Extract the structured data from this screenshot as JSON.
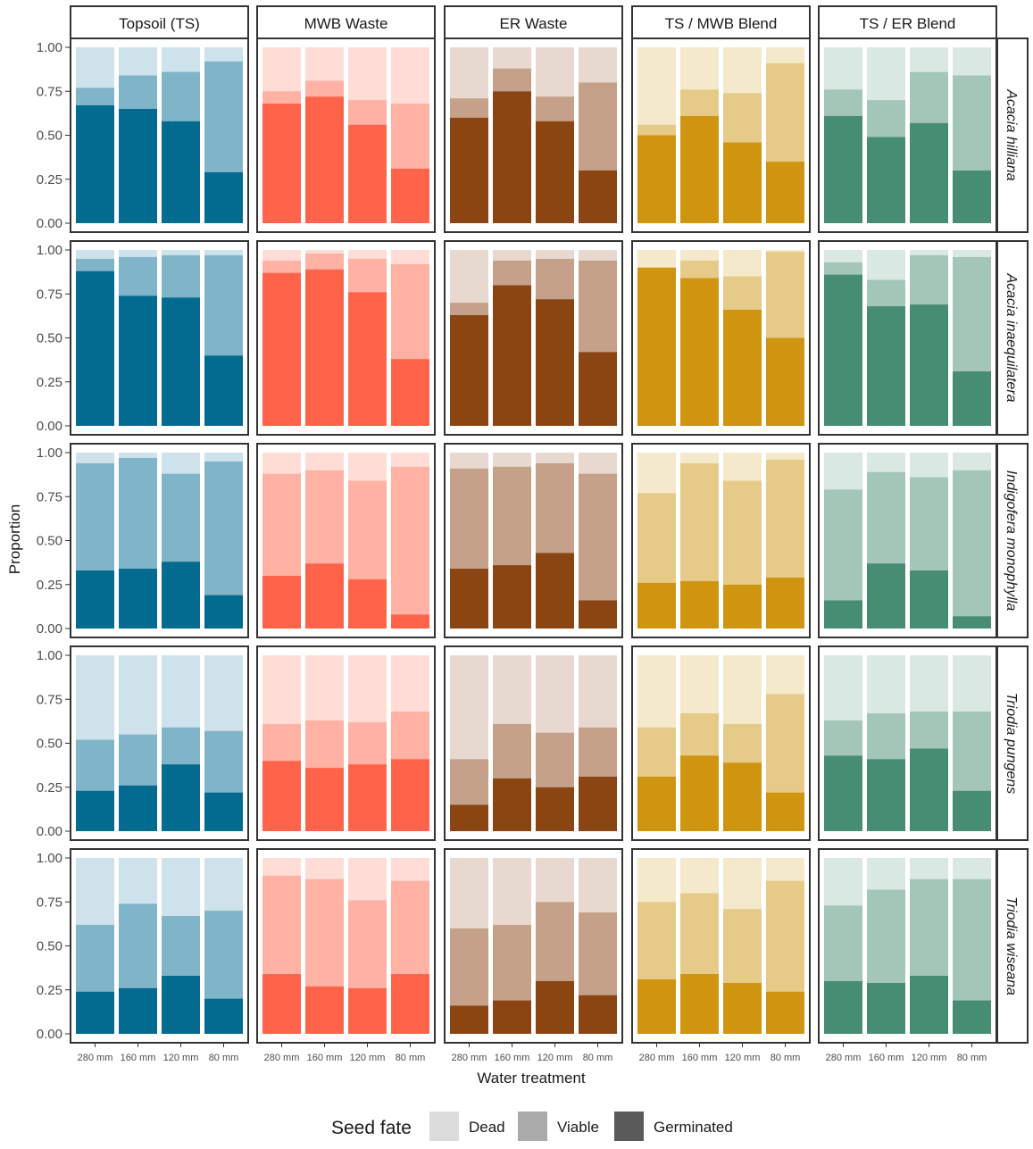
{
  "chart_data": {
    "type": "bar",
    "stacked": true,
    "normalized": true,
    "xlabel": "Water treatment",
    "ylabel": "Proportion",
    "ylim": [
      0,
      1
    ],
    "yticks": [
      "0.00",
      "0.25",
      "0.50",
      "0.75",
      "1.00"
    ],
    "categories": [
      "280 mm",
      "160 mm",
      "120 mm",
      "80 mm"
    ],
    "columns": [
      "Topsoil (TS)",
      "MWB Waste",
      "ER Waste",
      "TS / MWB Blend",
      "TS / ER Blend"
    ],
    "rows": [
      "Acacia hilliana",
      "Acacia inaequilatera",
      "Indigofera monophylla",
      "Triodia pungens",
      "Triodia wiseana"
    ],
    "legend": {
      "title": "Seed fate",
      "position": "bottom",
      "entries": [
        {
          "label": "Dead",
          "color": "#dcdcdc"
        },
        {
          "label": "Viable",
          "color": "#aaaaaa"
        },
        {
          "label": "Germinated",
          "color": "#5a5a5a"
        }
      ]
    },
    "substrate_colors": {
      "Topsoil (TS)": {
        "germinated": "#036b8f",
        "viable": "#80b4c8",
        "dead": "#cde2ea"
      },
      "MWB Waste": {
        "germinated": "#ff644a",
        "viable": "#ffb1a4",
        "dead": "#ffdcd6"
      },
      "ER Waste": {
        "germinated": "#8b4513",
        "viable": "#c5a189",
        "dead": "#e8d9d0"
      },
      "TS / MWB Blend": {
        "germinated": "#cf9510",
        "viable": "#e6ca88",
        "dead": "#f5e9cb"
      },
      "TS / ER Blend": {
        "germinated": "#478d74",
        "viable": "#a3c6b9",
        "dead": "#dae8e3"
      }
    },
    "panels": {
      "Acacia hilliana": {
        "Topsoil (TS)": {
          "germinated": [
            0.67,
            0.65,
            0.58,
            0.29
          ],
          "germinated_plus_viable": [
            0.77,
            0.84,
            0.86,
            0.92
          ]
        },
        "MWB Waste": {
          "germinated": [
            0.68,
            0.72,
            0.56,
            0.31
          ],
          "germinated_plus_viable": [
            0.75,
            0.81,
            0.7,
            0.68
          ]
        },
        "ER Waste": {
          "germinated": [
            0.6,
            0.75,
            0.58,
            0.3
          ],
          "germinated_plus_viable": [
            0.71,
            0.88,
            0.72,
            0.8
          ]
        },
        "TS / MWB Blend": {
          "germinated": [
            0.5,
            0.61,
            0.46,
            0.35
          ],
          "germinated_plus_viable": [
            0.56,
            0.76,
            0.74,
            0.91
          ]
        },
        "TS / ER Blend": {
          "germinated": [
            0.61,
            0.49,
            0.57,
            0.3
          ],
          "germinated_plus_viable": [
            0.76,
            0.7,
            0.86,
            0.84
          ]
        }
      },
      "Acacia inaequilatera": {
        "Topsoil (TS)": {
          "germinated": [
            0.88,
            0.74,
            0.73,
            0.4
          ],
          "germinated_plus_viable": [
            0.95,
            0.96,
            0.97,
            0.97
          ]
        },
        "MWB Waste": {
          "germinated": [
            0.87,
            0.89,
            0.76,
            0.38
          ],
          "germinated_plus_viable": [
            0.94,
            0.98,
            0.95,
            0.92
          ]
        },
        "ER Waste": {
          "germinated": [
            0.63,
            0.8,
            0.72,
            0.42
          ],
          "germinated_plus_viable": [
            0.7,
            0.94,
            0.95,
            0.94
          ]
        },
        "TS / MWB Blend": {
          "germinated": [
            0.9,
            0.84,
            0.66,
            0.5
          ],
          "germinated_plus_viable": [
            0.9,
            0.94,
            0.85,
            0.99
          ]
        },
        "TS / ER Blend": {
          "germinated": [
            0.86,
            0.68,
            0.69,
            0.31
          ],
          "germinated_plus_viable": [
            0.93,
            0.83,
            0.97,
            0.96
          ]
        }
      },
      "Indigofera monophylla": {
        "Topsoil (TS)": {
          "germinated": [
            0.33,
            0.34,
            0.38,
            0.19
          ],
          "germinated_plus_viable": [
            0.94,
            0.97,
            0.88,
            0.95
          ]
        },
        "MWB Waste": {
          "germinated": [
            0.3,
            0.37,
            0.28,
            0.08
          ],
          "germinated_plus_viable": [
            0.88,
            0.9,
            0.84,
            0.92
          ]
        },
        "ER Waste": {
          "germinated": [
            0.34,
            0.36,
            0.43,
            0.16
          ],
          "germinated_plus_viable": [
            0.91,
            0.92,
            0.94,
            0.88
          ]
        },
        "TS / MWB Blend": {
          "germinated": [
            0.26,
            0.27,
            0.25,
            0.29
          ],
          "germinated_plus_viable": [
            0.77,
            0.94,
            0.84,
            0.96
          ]
        },
        "TS / ER Blend": {
          "germinated": [
            0.16,
            0.37,
            0.33,
            0.07
          ],
          "germinated_plus_viable": [
            0.79,
            0.89,
            0.86,
            0.9
          ]
        }
      },
      "Triodia pungens": {
        "Topsoil (TS)": {
          "germinated": [
            0.23,
            0.26,
            0.38,
            0.22
          ],
          "germinated_plus_viable": [
            0.52,
            0.55,
            0.59,
            0.57
          ]
        },
        "MWB Waste": {
          "germinated": [
            0.4,
            0.36,
            0.38,
            0.41
          ],
          "germinated_plus_viable": [
            0.61,
            0.63,
            0.62,
            0.68
          ]
        },
        "ER Waste": {
          "germinated": [
            0.15,
            0.3,
            0.25,
            0.31
          ],
          "germinated_plus_viable": [
            0.41,
            0.61,
            0.56,
            0.59
          ]
        },
        "TS / MWB Blend": {
          "germinated": [
            0.31,
            0.43,
            0.39,
            0.22
          ],
          "germinated_plus_viable": [
            0.59,
            0.67,
            0.61,
            0.78
          ]
        },
        "TS / ER Blend": {
          "germinated": [
            0.43,
            0.41,
            0.47,
            0.23
          ],
          "germinated_plus_viable": [
            0.63,
            0.67,
            0.68,
            0.68
          ]
        }
      },
      "Triodia wiseana": {
        "Topsoil (TS)": {
          "germinated": [
            0.24,
            0.26,
            0.33,
            0.2
          ],
          "germinated_plus_viable": [
            0.62,
            0.74,
            0.67,
            0.7
          ]
        },
        "MWB Waste": {
          "germinated": [
            0.34,
            0.27,
            0.26,
            0.34
          ],
          "germinated_plus_viable": [
            0.9,
            0.88,
            0.76,
            0.87
          ]
        },
        "ER Waste": {
          "germinated": [
            0.16,
            0.19,
            0.3,
            0.22
          ],
          "germinated_plus_viable": [
            0.6,
            0.62,
            0.75,
            0.69
          ]
        },
        "TS / MWB Blend": {
          "germinated": [
            0.31,
            0.34,
            0.29,
            0.24
          ],
          "germinated_plus_viable": [
            0.75,
            0.8,
            0.71,
            0.87
          ]
        },
        "TS / ER Blend": {
          "germinated": [
            0.3,
            0.29,
            0.33,
            0.19
          ],
          "germinated_plus_viable": [
            0.73,
            0.82,
            0.88,
            0.88
          ]
        }
      }
    }
  }
}
